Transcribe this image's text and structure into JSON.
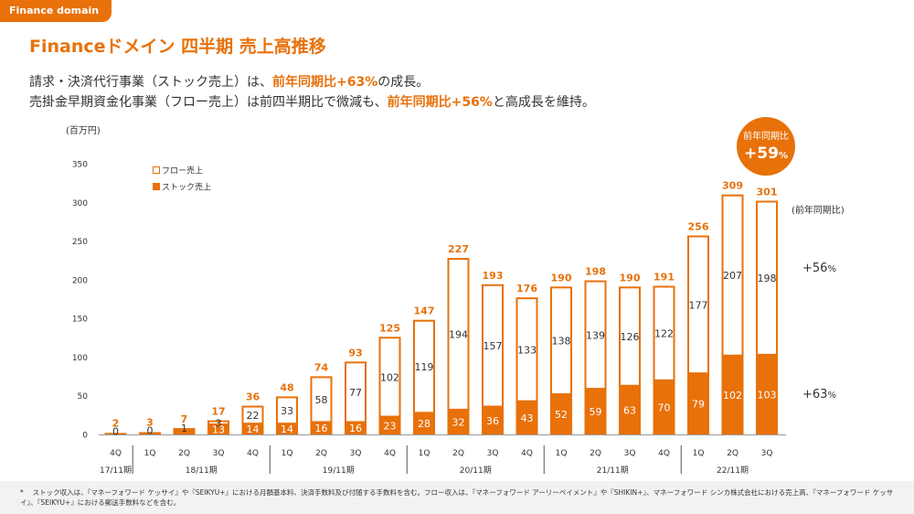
{
  "header": {
    "tag": "Finance domain",
    "title": "Financeドメイン 四半期 売上高推移",
    "line1": {
      "pre": "請求・決済代行事業（ストック売上）は、",
      "hl": "前年同期比+63%",
      "post": "の成長。"
    },
    "line2": {
      "pre": "売掛金早期資金化事業（フロー売上）は前四半期比で微減も、",
      "hl": "前年同期比+56%",
      "post": "と高成長を維持。"
    }
  },
  "unit_label": "(百万円)",
  "badge": {
    "line1": "前年同期比",
    "value": "+59",
    "unit": "%"
  },
  "yoy": {
    "label": "(前年同期比)",
    "flow": {
      "value": "+56",
      "unit": "%"
    },
    "stock": {
      "value": "+63",
      "unit": "%"
    }
  },
  "footnote": "*　 ストック収入は、『マネーフォワード ケッサイ』や『SEIKYU+』における月額基本料、決済手数料及び付随する手数料を含む。フロー収入は、『マネーフォワード アーリーペイメント』や『SHIKIN+』、マネーフォワード シンカ株式会社における売上高、『マネーフォワード ケッサイ』、『SEIKYU+』における郵送手数料などを含む。",
  "colors": {
    "accent": "#E8710A",
    "stock": "#E8710A",
    "flow": "#ffffff"
  },
  "chart_data": {
    "type": "bar",
    "stacked": true,
    "categories": [
      "4Q",
      "1Q",
      "2Q",
      "3Q",
      "4Q",
      "1Q",
      "2Q",
      "3Q",
      "4Q",
      "1Q",
      "2Q",
      "3Q",
      "4Q",
      "1Q",
      "2Q",
      "3Q",
      "4Q",
      "1Q",
      "2Q",
      "3Q"
    ],
    "fiscal_years": [
      {
        "label": "17/11期",
        "count": 1
      },
      {
        "label": "18/11期",
        "count": 4
      },
      {
        "label": "19/11期",
        "count": 4
      },
      {
        "label": "20/11期",
        "count": 4
      },
      {
        "label": "21/11期",
        "count": 4
      },
      {
        "label": "22/11期",
        "count": 3
      }
    ],
    "series": [
      {
        "name": "ストック売上",
        "values": [
          2,
          3,
          6,
          13,
          14,
          14,
          16,
          16,
          23,
          28,
          32,
          36,
          43,
          52,
          59,
          63,
          70,
          79,
          102,
          103
        ]
      },
      {
        "name": "フロー売上",
        "values": [
          0,
          0,
          1,
          3,
          22,
          33,
          58,
          77,
          102,
          119,
          194,
          157,
          133,
          138,
          139,
          126,
          122,
          177,
          207,
          198
        ]
      }
    ],
    "totals": [
      2,
      3,
      7,
      17,
      36,
      48,
      74,
      93,
      125,
      147,
      227,
      193,
      176,
      190,
      198,
      190,
      191,
      256,
      309,
      301
    ],
    "ylim": [
      0,
      350
    ],
    "yticks": [
      0,
      50,
      100,
      150,
      200,
      250,
      300,
      350
    ],
    "grid": false,
    "legend": "top-left"
  }
}
